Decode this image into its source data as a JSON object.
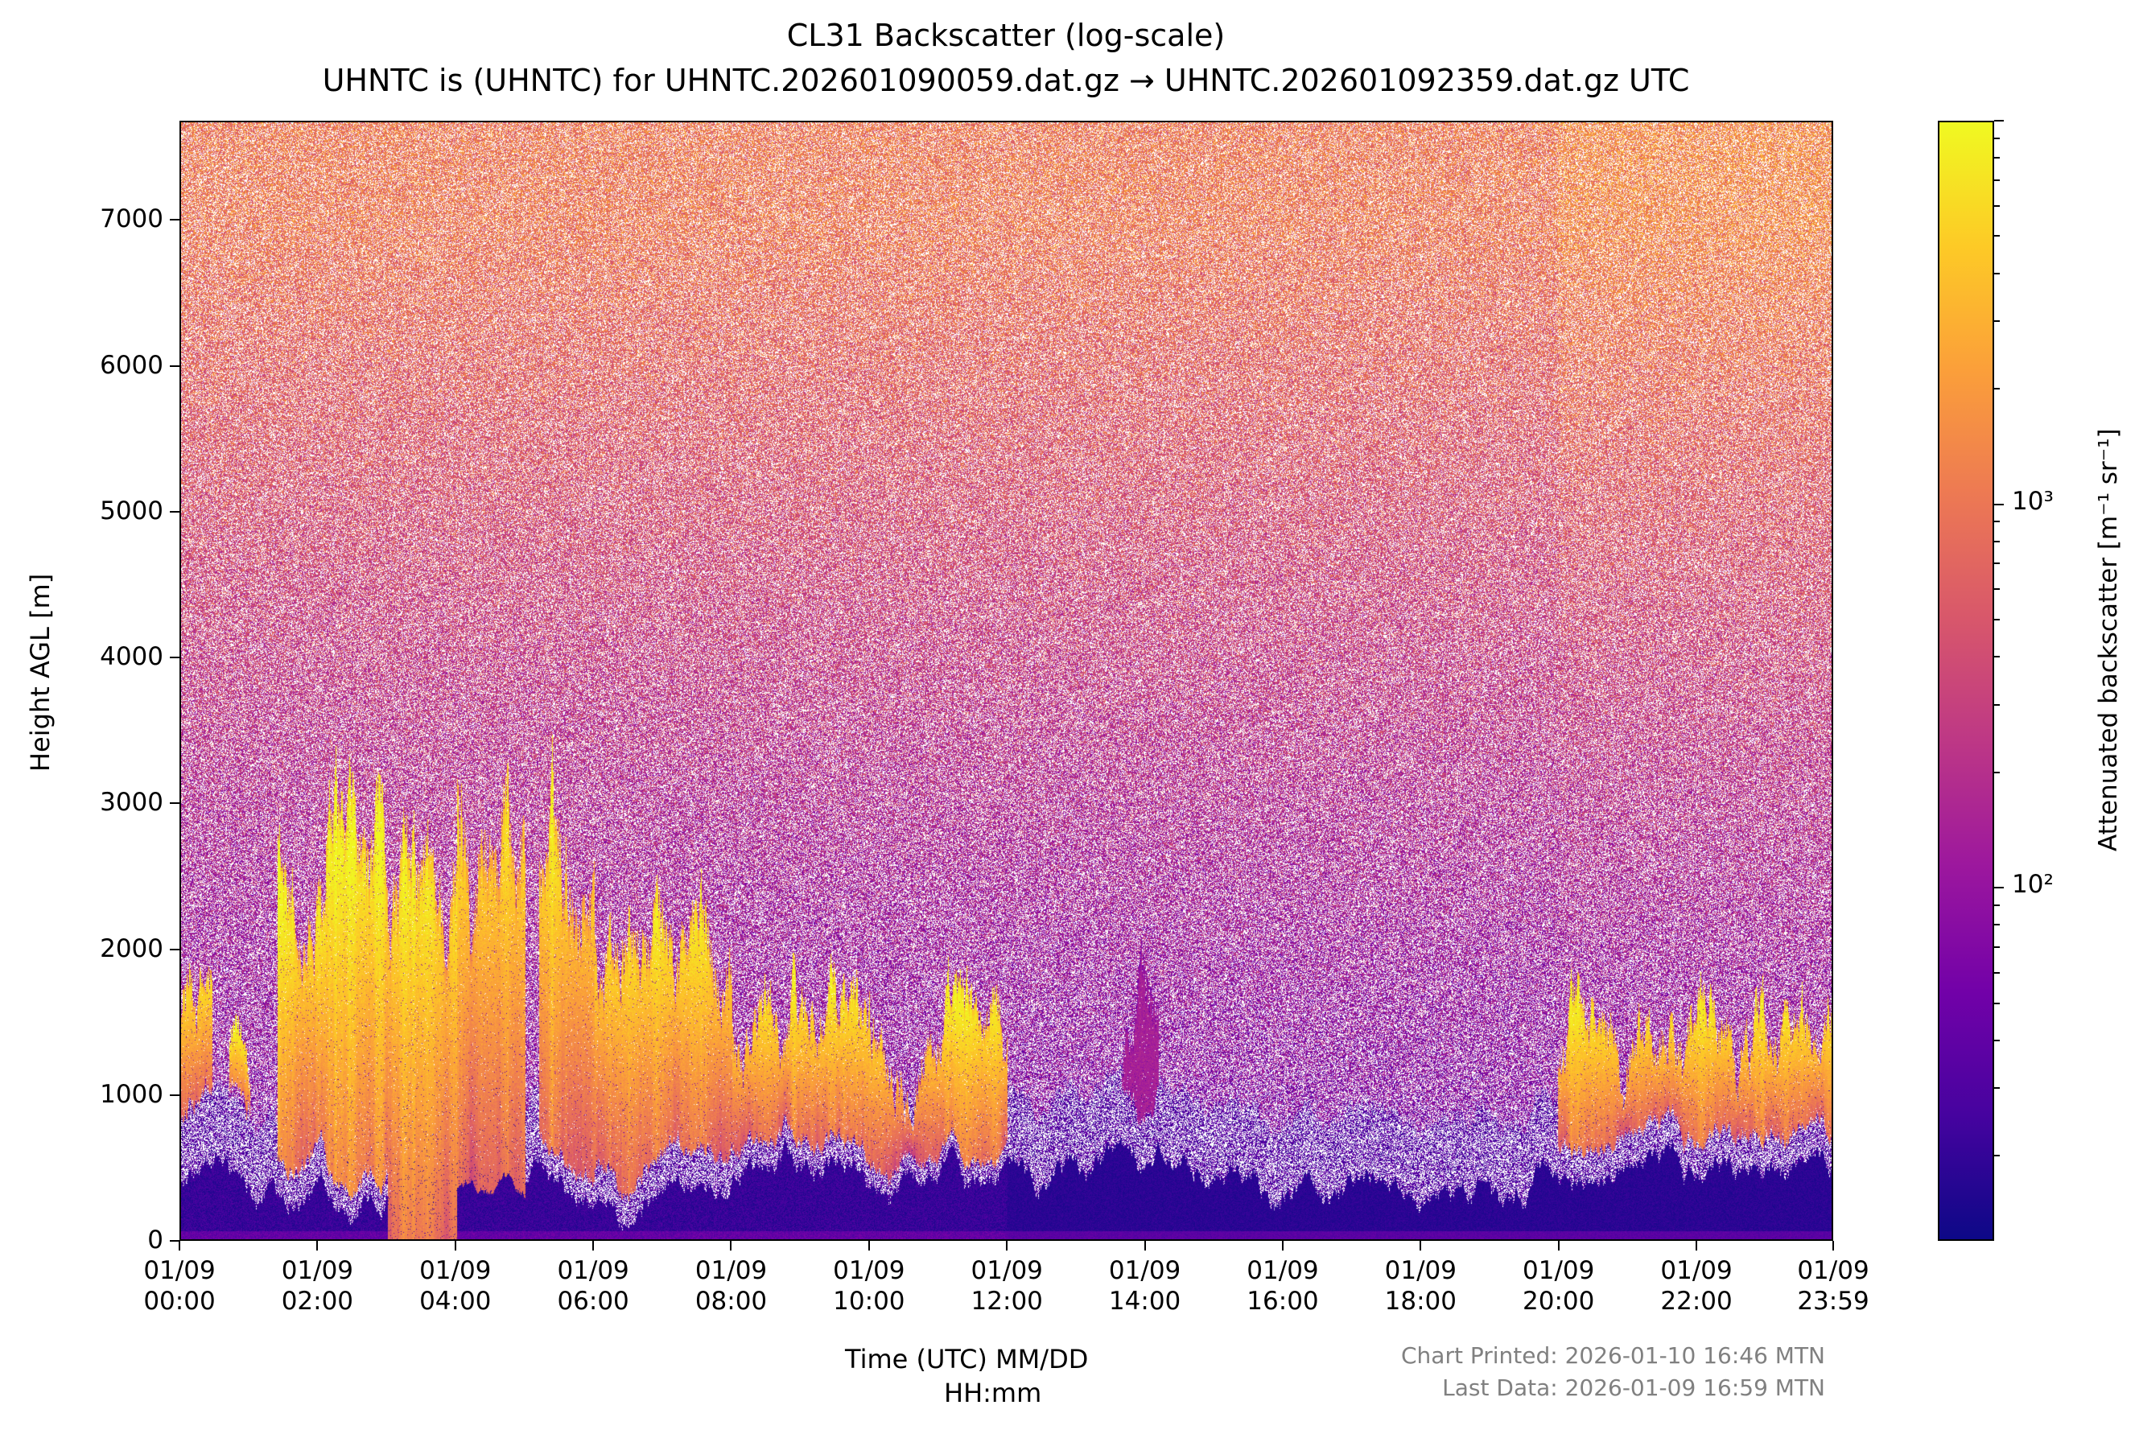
{
  "chart_data": {
    "type": "heatmap",
    "title": "CL31 Backscatter (log-scale)",
    "subtitle": "UHNTC is (UHNTC) for UHNTC.202601090059.dat.gz → UHNTC.202601092359.dat.gz UTC",
    "xlabel_line1": "Time (UTC) MM/DD",
    "xlabel_line2": "HH:mm",
    "ylabel": "Height AGL [m]",
    "xlim_hours": [
      0,
      23.983
    ],
    "ylim": [
      0,
      7680
    ],
    "x_ticks": [
      {
        "hour": 0,
        "date": "01/09",
        "time": "00:00"
      },
      {
        "hour": 2,
        "date": "01/09",
        "time": "02:00"
      },
      {
        "hour": 4,
        "date": "01/09",
        "time": "04:00"
      },
      {
        "hour": 6,
        "date": "01/09",
        "time": "06:00"
      },
      {
        "hour": 8,
        "date": "01/09",
        "time": "08:00"
      },
      {
        "hour": 10,
        "date": "01/09",
        "time": "10:00"
      },
      {
        "hour": 12,
        "date": "01/09",
        "time": "12:00"
      },
      {
        "hour": 14,
        "date": "01/09",
        "time": "14:00"
      },
      {
        "hour": 16,
        "date": "01/09",
        "time": "16:00"
      },
      {
        "hour": 18,
        "date": "01/09",
        "time": "18:00"
      },
      {
        "hour": 20,
        "date": "01/09",
        "time": "20:00"
      },
      {
        "hour": 22,
        "date": "01/09",
        "time": "22:00"
      },
      {
        "hour": 23.983,
        "date": "01/09",
        "time": "23:59"
      }
    ],
    "y_ticks": [
      0,
      1000,
      2000,
      3000,
      4000,
      5000,
      6000,
      7000
    ],
    "colorbar": {
      "label": "Attenuated backscatter [m⁻¹ sr⁻¹]",
      "scale": "log",
      "range": [
        12,
        10000
      ],
      "ticks": [
        {
          "value": 100,
          "label": "10²"
        },
        {
          "value": 1000,
          "label": "10³"
        }
      ],
      "colormap": "plasma",
      "colors": [
        "#0d0887",
        "#46039f",
        "#7201a8",
        "#9c179e",
        "#bd3786",
        "#d8576b",
        "#ed7953",
        "#fb9f3a",
        "#fdca26",
        "#f0f921"
      ]
    },
    "cloud_layers": [
      {
        "start_hour": 0.0,
        "end_hour": 0.45,
        "base_m": 900,
        "top_m": 1700
      },
      {
        "start_hour": 0.7,
        "end_hour": 1.0,
        "base_m": 1000,
        "top_m": 1200
      },
      {
        "start_hour": 1.4,
        "end_hour": 2.1,
        "base_m": 700,
        "top_m": 2050
      },
      {
        "start_hour": 2.1,
        "end_hour": 3.0,
        "base_m": 600,
        "top_m": 2400
      },
      {
        "start_hour": 3.0,
        "end_hour": 4.0,
        "base_m": 0,
        "top_m": 2300
      },
      {
        "start_hour": 4.0,
        "end_hour": 5.0,
        "base_m": 300,
        "top_m": 2800
      },
      {
        "start_hour": 5.2,
        "end_hour": 6.0,
        "base_m": 600,
        "top_m": 2600
      },
      {
        "start_hour": 6.0,
        "end_hour": 8.0,
        "base_m": 700,
        "top_m": 2000
      },
      {
        "start_hour": 8.0,
        "end_hour": 10.0,
        "base_m": 600,
        "top_m": 1550
      },
      {
        "start_hour": 10.0,
        "end_hour": 12.0,
        "base_m": 550,
        "top_m": 1450
      },
      {
        "start_hour": 13.6,
        "end_hour": 14.2,
        "base_m": 750,
        "top_m": 1500,
        "faint": true
      },
      {
        "start_hour": 20.0,
        "end_hour": 24.0,
        "base_m": 650,
        "top_m": 1450
      }
    ]
  },
  "footer": {
    "printed": "Chart Printed: 2026-01-10 16:46 MTN",
    "last_data": "Last Data: 2026-01-09 16:59 MTN"
  }
}
